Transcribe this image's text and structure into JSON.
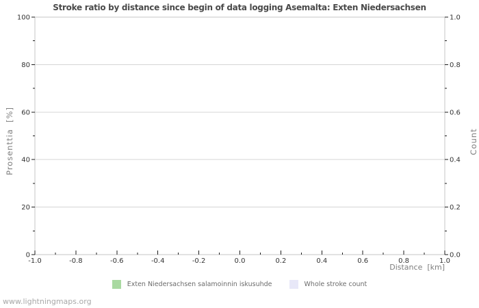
{
  "page": {
    "watermark": "www.lightningmaps.org"
  },
  "chart_data": {
    "type": "line",
    "title": "Stroke ratio by distance since begin of data logging Asemalta: Exten Niedersachsen",
    "plot_empty": true,
    "grid": "horizontal-major",
    "legend_position": "bottom-center",
    "x_axis": {
      "label": "Distance  [km]",
      "min": -1.0,
      "max": 1.0,
      "tick_values": [
        -1.0,
        -0.8,
        -0.6,
        -0.4,
        -0.2,
        0.0,
        0.2,
        0.4,
        0.6,
        0.8,
        1.0
      ],
      "tick_labels": [
        "-1.0",
        "-0.8",
        "-0.6",
        "-0.4",
        "-0.2",
        "0.0",
        "0.2",
        "0.4",
        "0.6",
        "0.8",
        "1.0"
      ],
      "minor_tick_values": [
        -0.9,
        -0.7,
        -0.5,
        -0.3,
        -0.1,
        0.1,
        0.3,
        0.5,
        0.7,
        0.9
      ]
    },
    "y_axis_left": {
      "label": "Prosenttia  [%]",
      "min": 0,
      "max": 100,
      "tick_values": [
        0,
        20,
        40,
        60,
        80,
        100
      ],
      "tick_labels": [
        "0",
        "20",
        "40",
        "60",
        "80",
        "100"
      ],
      "minor_tick_values": [
        10,
        30,
        50,
        70,
        90
      ]
    },
    "y_axis_right": {
      "label": "Count",
      "min": 0.0,
      "max": 1.0,
      "tick_values": [
        0.0,
        0.2,
        0.4,
        0.6,
        0.8,
        1.0
      ],
      "tick_labels": [
        "0.0",
        "0.2",
        "0.4",
        "0.6",
        "0.8",
        "1.0"
      ],
      "minor_tick_values": [
        0.1,
        0.3,
        0.5,
        0.7,
        0.9
      ]
    },
    "series": [
      {
        "name": "Exten Niedersachsen salamoinnin iskusuhde",
        "axis": "left",
        "color": "#a9d9a1",
        "x": [],
        "values": []
      },
      {
        "name": "Whole stroke count",
        "axis": "right",
        "color": "#e8e8f8",
        "x": [],
        "values": []
      }
    ],
    "legend": [
      {
        "label": "Exten Niedersachsen salamoinnin iskusuhde",
        "color": "#a9d9a1"
      },
      {
        "label": "Whole stroke count",
        "color": "#e8e8f8"
      }
    ],
    "colors": {
      "background": "#ffffff",
      "plot_border": "#c6c6c6",
      "gridline": "#d4d4d4",
      "tick_mark": "#1a1a1a",
      "tick_label": "#333333",
      "title": "#4a4a4a",
      "axis_label": "#7d7d7d",
      "legend_text": "#6b6b6b",
      "watermark": "#a8a8a8"
    }
  }
}
